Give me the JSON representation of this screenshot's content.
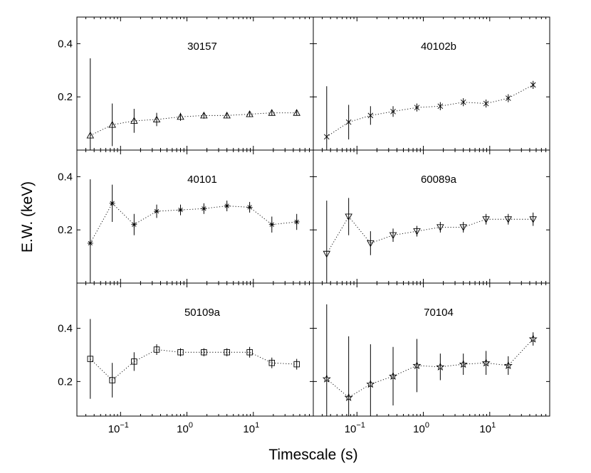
{
  "chart_data": {
    "type": "scatter",
    "xscale": "log",
    "xlabel": "Timescale (s)",
    "ylabel": "E.W. (keV)",
    "grid": false,
    "x": [
      0.035,
      0.075,
      0.16,
      0.35,
      0.8,
      1.8,
      4,
      8.8,
      19,
      45
    ],
    "x_ticks": [
      {
        "value": 0.1,
        "base": "10",
        "exp": "−1"
      },
      {
        "value": 1,
        "base": "10",
        "exp": "0"
      },
      {
        "value": 10,
        "base": "10",
        "exp": "1"
      }
    ],
    "rows": [
      {
        "ylim": [
          0,
          0.5
        ],
        "yticks": [
          {
            "value": 0.2,
            "label": "0.2"
          },
          {
            "value": 0.4,
            "label": "0.4"
          }
        ]
      },
      {
        "ylim": [
          0,
          0.5
        ],
        "yticks": [
          {
            "value": 0.2,
            "label": "0.2"
          },
          {
            "value": 0.4,
            "label": "0.4"
          }
        ]
      },
      {
        "ylim": [
          0.07,
          0.57
        ],
        "yticks": [
          {
            "value": 0.2,
            "label": "0.2"
          },
          {
            "value": 0.4,
            "label": "0.4"
          }
        ]
      }
    ],
    "panels": [
      {
        "name": "30157",
        "row": 0,
        "col": 0,
        "marker": "triangle-up",
        "y": [
          0.055,
          0.095,
          0.11,
          0.115,
          0.125,
          0.13,
          0.13,
          0.135,
          0.14,
          0.14
        ],
        "err": [
          0.29,
          0.08,
          0.045,
          0.025,
          0.015,
          0.012,
          0.01,
          0.01,
          0.01,
          0.01
        ]
      },
      {
        "name": "40102b",
        "row": 0,
        "col": 1,
        "marker": "x",
        "y": [
          0.05,
          0.105,
          0.13,
          0.145,
          0.16,
          0.165,
          0.18,
          0.175,
          0.195,
          0.245
        ],
        "err": [
          0.19,
          0.065,
          0.035,
          0.02,
          0.015,
          0.015,
          0.015,
          0.015,
          0.015,
          0.015
        ]
      },
      {
        "name": "40101",
        "row": 1,
        "col": 0,
        "marker": "asterisk",
        "y": [
          0.15,
          0.3,
          0.22,
          0.27,
          0.275,
          0.28,
          0.29,
          0.285,
          0.22,
          0.23
        ],
        "err": [
          0.24,
          0.07,
          0.04,
          0.025,
          0.02,
          0.02,
          0.02,
          0.02,
          0.03,
          0.03
        ]
      },
      {
        "name": "60089a",
        "row": 1,
        "col": 1,
        "marker": "triangle-down",
        "y": [
          0.11,
          0.25,
          0.15,
          0.18,
          0.195,
          0.21,
          0.21,
          0.24,
          0.24,
          0.24
        ],
        "err": [
          0.2,
          0.07,
          0.045,
          0.025,
          0.02,
          0.02,
          0.02,
          0.02,
          0.02,
          0.025
        ]
      },
      {
        "name": "50109a",
        "row": 2,
        "col": 0,
        "marker": "square",
        "y": [
          0.285,
          0.205,
          0.275,
          0.32,
          0.31,
          0.31,
          0.31,
          0.31,
          0.27,
          0.265
        ],
        "err": [
          0.15,
          0.065,
          0.035,
          0.02,
          0.015,
          0.015,
          0.015,
          0.02,
          0.02,
          0.02
        ]
      },
      {
        "name": "70104",
        "row": 2,
        "col": 1,
        "marker": "star",
        "y": [
          0.21,
          0.14,
          0.19,
          0.22,
          0.26,
          0.255,
          0.265,
          0.27,
          0.26,
          0.36
        ],
        "err": [
          0.28,
          0.23,
          0.15,
          0.11,
          0.1,
          0.05,
          0.04,
          0.045,
          0.035,
          0.025
        ]
      }
    ]
  }
}
